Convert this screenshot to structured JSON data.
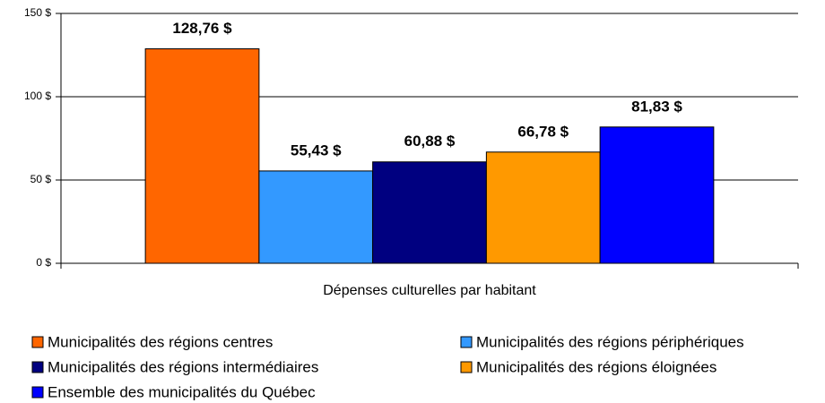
{
  "chart_data": {
    "type": "bar",
    "categories": [
      "Dépenses culturelles par habitant"
    ],
    "series": [
      {
        "name": "Municipalités des régions centres",
        "color": "#ff6600",
        "values": [
          128.76
        ],
        "value_labels": [
          "128,76 $"
        ]
      },
      {
        "name": "Municipalités des régions périphériques",
        "color": "#3399ff",
        "values": [
          55.43
        ],
        "value_labels": [
          "55,43 $"
        ]
      },
      {
        "name": "Municipalités des régions intermédiaires",
        "color": "#000080",
        "values": [
          60.88
        ],
        "value_labels": [
          "60,88 $"
        ]
      },
      {
        "name": "Municipalités des régions éloignées",
        "color": "#ff9900",
        "values": [
          66.78
        ],
        "value_labels": [
          "66,78 $"
        ]
      },
      {
        "name": "Ensemble des municipalités du Québec",
        "color": "#0000ff",
        "values": [
          81.83
        ],
        "value_labels": [
          "81,83 $"
        ]
      }
    ],
    "ylim": [
      0,
      150
    ],
    "yticks": [
      {
        "value": 0,
        "label": "0 $"
      },
      {
        "value": 50,
        "label": "50 $"
      },
      {
        "value": 100,
        "label": "100 $"
      },
      {
        "value": 150,
        "label": "150 $"
      }
    ],
    "grid": true
  }
}
